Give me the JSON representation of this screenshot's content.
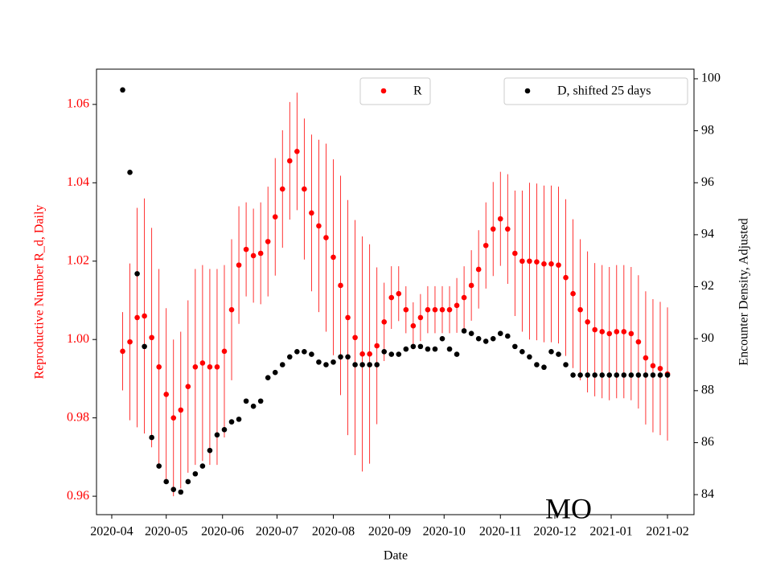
{
  "chart_data": {
    "type": "scatter",
    "xlabel": "Date",
    "ylabel": "Reproductive Number R_d, Daily",
    "y2label": "Encounter Density, Adjusted",
    "annotation": "MO",
    "x": [
      6,
      10,
      14,
      18,
      22,
      26,
      30,
      34,
      38,
      42,
      46,
      50,
      54,
      58,
      62,
      66,
      70,
      74,
      78,
      82,
      86,
      90,
      94,
      98,
      102,
      106,
      110,
      114,
      118,
      122,
      126,
      130,
      134,
      138,
      142,
      146,
      150,
      154,
      158,
      162,
      166,
      170,
      174,
      178,
      182,
      186,
      190,
      194,
      198,
      202,
      206,
      210,
      214,
      218,
      222,
      226,
      230,
      234,
      238,
      242,
      246,
      250,
      254,
      258,
      262,
      266,
      270,
      274,
      278,
      282,
      286,
      290,
      294,
      298,
      302,
      306
    ],
    "series": [
      {
        "name": "R",
        "color": "#ff0000",
        "axis": "y",
        "values": [
          0.997,
          0.9994,
          1.0056,
          1.006,
          1.0005,
          0.993,
          0.986,
          0.98,
          0.982,
          0.988,
          0.993,
          0.994,
          0.993,
          0.993,
          0.997,
          1.0076,
          1.019,
          1.023,
          1.0214,
          1.022,
          1.025,
          1.0313,
          1.0384,
          1.0456,
          1.048,
          1.0384,
          1.0323,
          1.029,
          1.026,
          1.021,
          1.0138,
          1.0056,
          1.0005,
          0.9963,
          0.9963,
          0.9984,
          1.0045,
          1.0107,
          1.0117,
          1.0076,
          1.0035,
          1.0056,
          1.0076,
          1.0076,
          1.0076,
          1.0076,
          1.0087,
          1.0107,
          1.0138,
          1.0179,
          1.024,
          1.0282,
          1.0308,
          1.0282,
          1.022,
          1.02,
          1.02,
          1.0198,
          1.0193,
          1.0193,
          1.019,
          1.0158,
          1.0117,
          1.0076,
          1.0045,
          1.0025,
          1.002,
          1.0015,
          1.002,
          1.002,
          1.0015,
          0.9994,
          0.9953,
          0.9933,
          0.9926,
          0.9912
        ],
        "errors": [
          0.01,
          0.02,
          0.028,
          0.03,
          0.028,
          0.025,
          0.022,
          0.02,
          0.02,
          0.022,
          0.025,
          0.025,
          0.025,
          0.025,
          0.022,
          0.018,
          0.015,
          0.012,
          0.012,
          0.013,
          0.014,
          0.015,
          0.015,
          0.015,
          0.015,
          0.018,
          0.02,
          0.022,
          0.024,
          0.025,
          0.028,
          0.03,
          0.03,
          0.03,
          0.028,
          0.02,
          0.01,
          0.008,
          0.007,
          0.006,
          0.006,
          0.006,
          0.006,
          0.006,
          0.006,
          0.006,
          0.007,
          0.008,
          0.009,
          0.01,
          0.011,
          0.012,
          0.012,
          0.014,
          0.016,
          0.018,
          0.02,
          0.02,
          0.02,
          0.02,
          0.02,
          0.02,
          0.019,
          0.018,
          0.018,
          0.017,
          0.017,
          0.017,
          0.017,
          0.017,
          0.017,
          0.017,
          0.017,
          0.017,
          0.017,
          0.017
        ]
      },
      {
        "name": "D, shifted 25 days",
        "color": "#000000",
        "axis": "y2",
        "values": [
          99.57,
          96.4,
          92.5,
          89.7,
          86.2,
          85.1,
          84.5,
          84.2,
          84.1,
          84.5,
          84.8,
          85.1,
          85.7,
          86.3,
          86.5,
          86.8,
          86.9,
          87.6,
          87.4,
          87.6,
          88.5,
          88.7,
          89.0,
          89.3,
          89.5,
          89.5,
          89.4,
          89.1,
          89.0,
          89.1,
          89.3,
          89.3,
          89.0,
          89.0,
          89.0,
          89.0,
          89.5,
          89.4,
          89.4,
          89.6,
          89.7,
          89.7,
          89.6,
          89.6,
          90.0,
          89.6,
          89.4,
          90.3,
          90.2,
          90.0,
          89.9,
          90.0,
          90.2,
          90.1,
          89.7,
          89.5,
          89.3,
          89.0,
          88.9,
          89.5,
          89.4,
          89.0,
          88.6,
          88.6,
          88.6,
          88.6,
          88.6,
          88.6,
          88.6,
          88.6,
          88.6,
          88.6,
          88.6,
          88.6,
          88.6,
          88.6
        ]
      }
    ],
    "xlim": [
      -8.4,
      320.6
    ],
    "xticks": [
      {
        "value": 0,
        "label": "2020-04"
      },
      {
        "value": 30,
        "label": "2020-05"
      },
      {
        "value": 61,
        "label": "2020-06"
      },
      {
        "value": 91,
        "label": "2020-07"
      },
      {
        "value": 122,
        "label": "2020-08"
      },
      {
        "value": 153,
        "label": "2020-09"
      },
      {
        "value": 183,
        "label": "2020-10"
      },
      {
        "value": 214,
        "label": "2020-11"
      },
      {
        "value": 244,
        "label": "2020-12"
      },
      {
        "value": 275,
        "label": "2021-01"
      },
      {
        "value": 306,
        "label": "2021-02"
      }
    ],
    "ylim": [
      0.9553,
      1.069
    ],
    "yticks": [
      0.96,
      0.98,
      {
        "value": 1,
        "label": "1.00"
      },
      1.02,
      1.04,
      1.06
    ],
    "y2lim": [
      83.23,
      100.37
    ],
    "y2ticks": [
      84,
      86,
      88,
      90,
      92,
      94,
      96,
      98,
      100
    ]
  }
}
